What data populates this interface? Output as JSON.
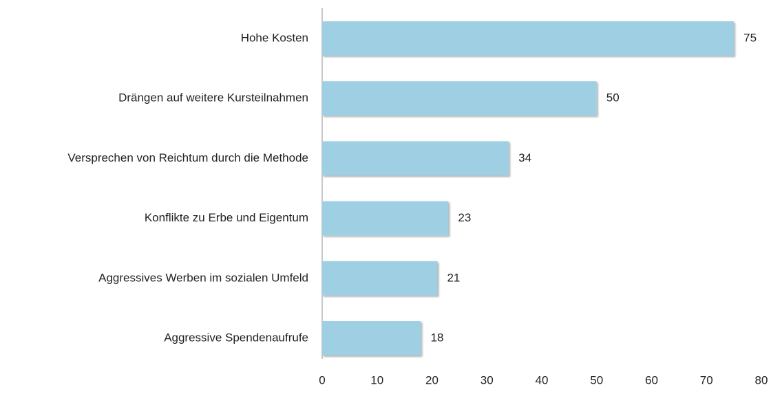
{
  "chart_data": {
    "type": "bar",
    "orientation": "horizontal",
    "categories": [
      "Hohe Kosten",
      "Drängen auf weitere Kursteilnahmen",
      "Versprechen von Reichtum durch die Methode",
      "Konflikte zu Erbe und Eigentum",
      "Aggressives Werben im sozialen Umfeld",
      "Aggressive Spendenaufrufe"
    ],
    "values": [
      75,
      50,
      34,
      23,
      21,
      18
    ],
    "color": "#9ecfe2",
    "xlim": [
      0,
      80
    ],
    "xticks": [
      0,
      10,
      20,
      30,
      40,
      50,
      60,
      70,
      80
    ],
    "grid": false
  }
}
